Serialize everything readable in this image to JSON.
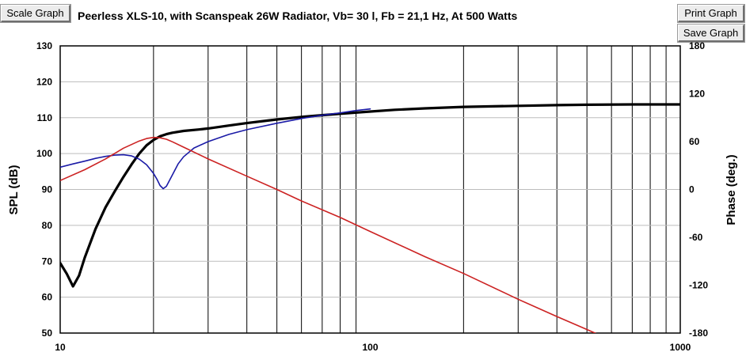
{
  "buttons": {
    "scale_graph": "Scale Graph",
    "print_graph": "Print Graph",
    "save_graph": "Save Graph"
  },
  "chart_data": {
    "type": "line",
    "title": "Peerless XLS-10,  with Scanspeak 26W Radiator, Vb= 30 l,  Fb = 21,1 Hz,  At 500 Watts",
    "xlabel": "",
    "ylabel": "SPL (dB)",
    "y2label": "Phase (deg.)",
    "xscale": "log",
    "xlim": [
      10,
      1000
    ],
    "ylim": [
      50,
      130
    ],
    "y2lim": [
      -180,
      180
    ],
    "grid": true,
    "x_ticks": [
      10,
      100,
      1000
    ],
    "y_ticks": [
      50,
      60,
      70,
      80,
      90,
      100,
      110,
      120,
      130
    ],
    "y2_ticks": [
      -180,
      -120,
      -60,
      0,
      60,
      120,
      180
    ],
    "series": [
      {
        "color": "#000000",
        "axis": "left",
        "x": [
          10,
          10.5,
          11,
          11.5,
          12,
          13,
          14,
          15,
          16,
          17,
          18,
          19,
          20,
          21,
          22,
          23,
          25,
          28,
          30,
          35,
          40,
          50,
          60,
          70,
          80,
          100,
          120,
          150,
          200,
          300,
          400,
          500,
          700,
          1000
        ],
        "y": [
          69.5,
          66.5,
          63,
          66,
          71,
          79,
          85,
          89.5,
          93.5,
          97,
          100,
          102.3,
          103.8,
          104.8,
          105.4,
          105.8,
          106.3,
          106.7,
          107,
          107.8,
          108.5,
          109.5,
          110.2,
          110.7,
          111.1,
          111.7,
          112.2,
          112.6,
          113,
          113.3,
          113.5,
          113.6,
          113.7,
          113.7
        ]
      },
      {
        "color": "#1a1aa6",
        "axis": "right",
        "x": [
          10,
          11,
          12,
          13,
          14,
          15,
          16,
          17,
          18,
          19,
          20,
          20.5,
          21,
          21.5,
          22,
          23,
          24,
          25,
          27,
          30,
          35,
          40,
          50,
          60,
          70,
          80,
          90,
          100
        ],
        "y": [
          28,
          32,
          35.5,
          39,
          41.5,
          43,
          43.5,
          42,
          38,
          31,
          20,
          13,
          5,
          1,
          4,
          18,
          32,
          41,
          52,
          60,
          69,
          75,
          83,
          89,
          93,
          96,
          99,
          101
        ]
      },
      {
        "color": "#cc2222",
        "axis": "left",
        "x": [
          10,
          12,
          14,
          16,
          18,
          19,
          20,
          21,
          22,
          23,
          25,
          30,
          40,
          50,
          60,
          80,
          100,
          150,
          200,
          300,
          400,
          500,
          600,
          700
        ],
        "y": [
          92.5,
          95.5,
          98.5,
          101.5,
          103.5,
          104.2,
          104.5,
          104.4,
          104,
          103.3,
          101.8,
          98.5,
          93.7,
          90,
          86.8,
          82.2,
          78.3,
          71.3,
          66.6,
          59.4,
          54.6,
          51,
          48,
          45.5
        ]
      }
    ]
  }
}
